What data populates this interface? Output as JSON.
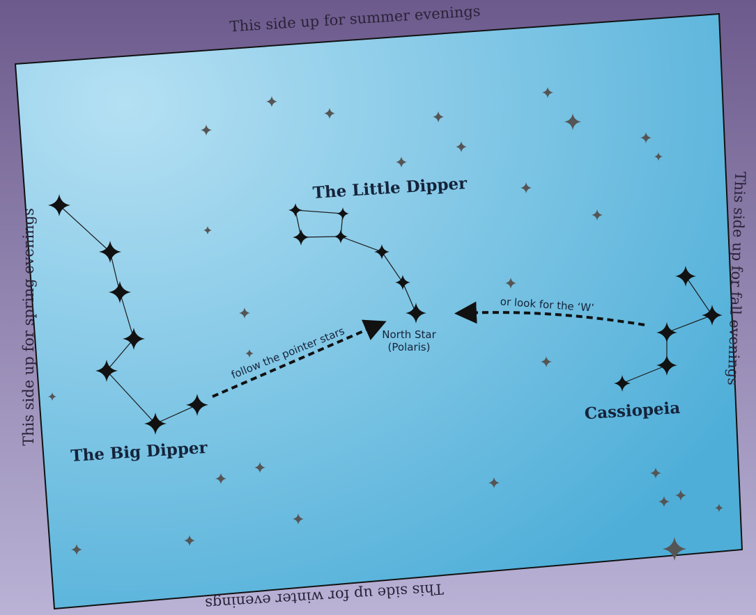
{
  "edges": {
    "top": "This side up for summer evenings",
    "left": "This side up for spring evenings",
    "right": "This side up for fall evenings",
    "bottom": "This side up for winter evenings"
  },
  "constellations": {
    "little_dipper": "The Little Dipper",
    "big_dipper": "The Big Dipper",
    "cassiopeia": "Cassiopeia"
  },
  "north_star": {
    "name": "North Star",
    "alt": "(Polaris)"
  },
  "hints": {
    "pointer": "follow the pointer stars",
    "w": "or look for the ‘W’"
  }
}
